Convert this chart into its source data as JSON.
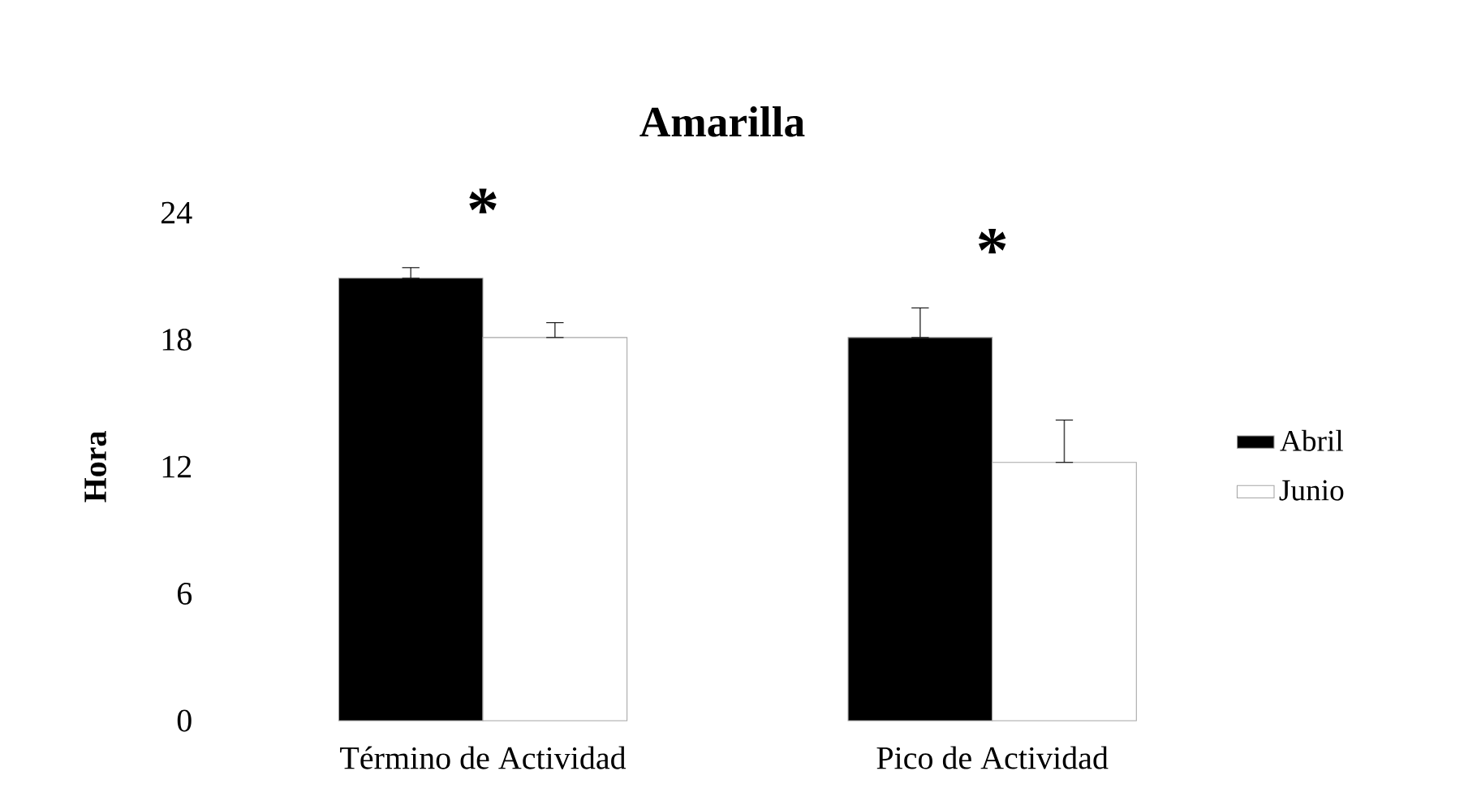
{
  "chart_data": {
    "type": "bar",
    "title": "Amarilla",
    "ylabel": "Hora",
    "categories": [
      "Término de Actividad",
      "Pico de Actividad"
    ],
    "series": [
      {
        "name": "Abril",
        "color": "#000000",
        "values": [
          20.9,
          18.1
        ],
        "errors": [
          [
            20.9,
            21.4
          ],
          [
            18.1,
            19.5
          ]
        ]
      },
      {
        "name": "Junio",
        "color": "#ffffff",
        "values": [
          18.1,
          12.2
        ],
        "errors": [
          [
            18.1,
            18.8
          ],
          [
            12.2,
            14.2
          ]
        ]
      }
    ],
    "ylim": [
      0,
      24
    ],
    "yticks": [
      0,
      6,
      12,
      18,
      24
    ],
    "legend": "right",
    "annotations": [
      "*",
      "*"
    ]
  }
}
